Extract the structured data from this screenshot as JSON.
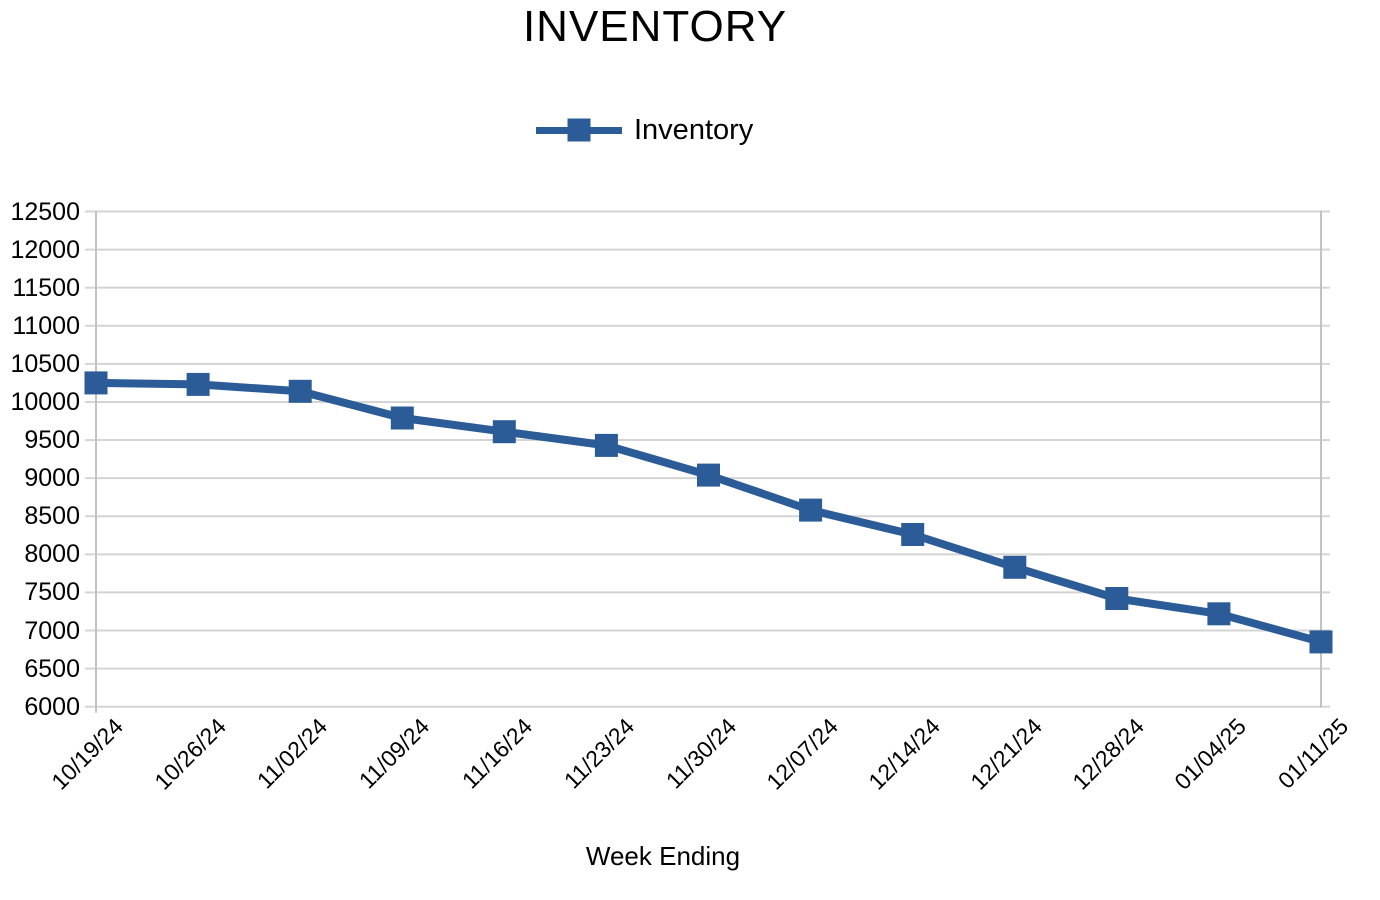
{
  "chart_data": {
    "type": "line",
    "title": "INVENTORY",
    "xlabel": "Week Ending",
    "ylabel": "",
    "legend": [
      {
        "label": "Inventory",
        "marker": "square-on-line-icon"
      }
    ],
    "legend_position": "top",
    "grid": "horizontal",
    "categories": [
      "10/19/24",
      "10/26/24",
      "11/02/24",
      "11/09/24",
      "11/16/24",
      "11/23/24",
      "11/30/24",
      "12/07/24",
      "12/14/24",
      "12/21/24",
      "12/28/24",
      "01/04/25",
      "01/11/25"
    ],
    "series": [
      {
        "name": "Inventory",
        "values": [
          10250,
          10230,
          10140,
          9790,
          9610,
          9430,
          9040,
          8580,
          8260,
          7830,
          7420,
          7220,
          6850
        ]
      }
    ],
    "ylim": [
      6000,
      12500
    ],
    "ytick_step": 500,
    "y_tick_labels": [
      "12500",
      "12000",
      "11500",
      "11000",
      "10500",
      "10000",
      "9500",
      "9000",
      "8500",
      "8000",
      "7500",
      "7000",
      "6500",
      "6000"
    ],
    "colors": {
      "series": "#2B5C97",
      "gridline": "#D4D4D4",
      "axis": "#C2C2C2",
      "text": "#000000",
      "background": "#FFFFFF"
    }
  }
}
